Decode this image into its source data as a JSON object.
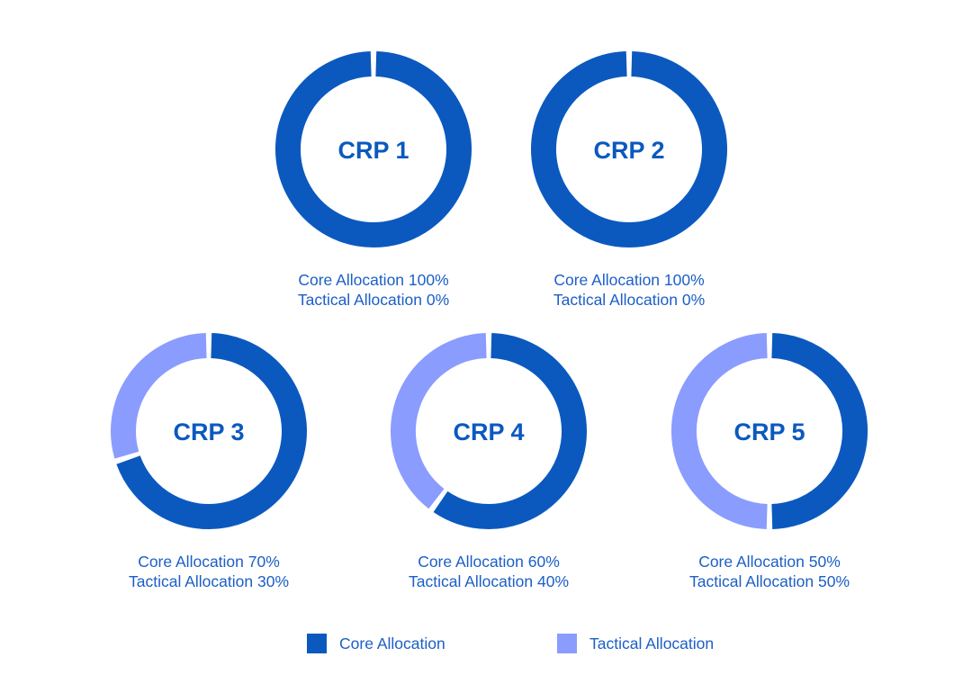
{
  "colors": {
    "core": "#0b59bf",
    "tactical": "#8b9cff",
    "text": "#1c5fc6"
  },
  "chart_data": {
    "type": "pie",
    "variant": "donut",
    "charts": [
      {
        "label": "CRP 1",
        "values": [
          100,
          0
        ],
        "caption": [
          "Core Allocation 100%",
          "Tactical Allocation 0%"
        ]
      },
      {
        "label": "CRP 2",
        "values": [
          100,
          0
        ],
        "caption": [
          "Core Allocation 100%",
          "Tactical Allocation 0%"
        ]
      },
      {
        "label": "CRP 3",
        "values": [
          70,
          30
        ],
        "caption": [
          "Core Allocation 70%",
          "Tactical Allocation 30%"
        ]
      },
      {
        "label": "CRP 4",
        "values": [
          60,
          40
        ],
        "caption": [
          "Core Allocation 60%",
          "Tactical Allocation 40%"
        ]
      },
      {
        "label": "CRP 5",
        "values": [
          50,
          50
        ],
        "caption": [
          "Core Allocation 50%",
          "Tactical Allocation 50%"
        ]
      }
    ],
    "series": [
      {
        "name": "Core Allocation"
      },
      {
        "name": "Tactical Allocation"
      }
    ],
    "legend": {
      "position": "bottom",
      "items": [
        "Core Allocation",
        "Tactical Allocation"
      ]
    }
  }
}
